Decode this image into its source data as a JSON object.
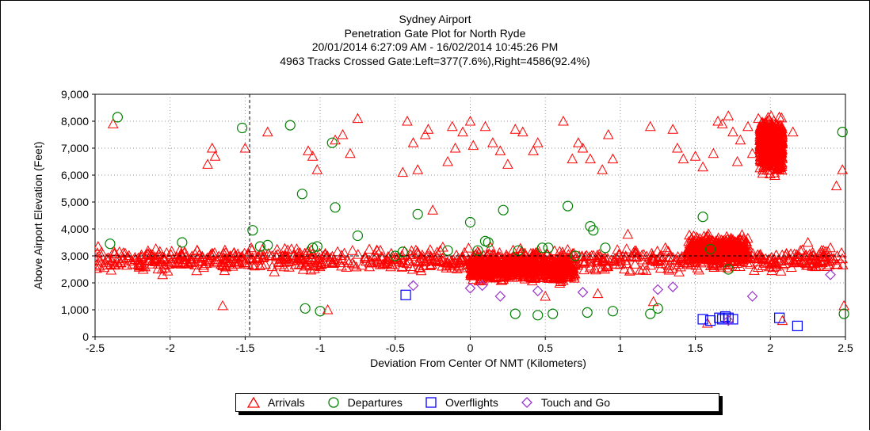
{
  "chart_data": {
    "type": "scatter",
    "title": "Sydney Airport",
    "subtitle_lines": [
      "Penetration Gate Plot for North Ryde",
      "20/01/2014 6:27:09 AM - 16/02/2014 10:45:26 PM",
      "4963 Tracks Crossed Gate:Left=377(7.6%),Right=4586(92.4%)"
    ],
    "xlabel": "Deviation From Center Of NMT (Kilometers)",
    "ylabel": "Above Airport Elevation (Feet)",
    "xlim": [
      -2.5,
      2.5
    ],
    "ylim": [
      0,
      9000
    ],
    "x_ticks": [
      -2.5,
      -2,
      -1.5,
      -1,
      -0.5,
      0,
      0.5,
      1,
      1.5,
      2,
      2.5
    ],
    "x_tick_labels": [
      "-2.5",
      "-2",
      "-1.5",
      "-1",
      "-0.5",
      "0",
      "0.5",
      "1",
      "1.5",
      "2",
      "2.5"
    ],
    "y_ticks": [
      0,
      1000,
      2000,
      3000,
      4000,
      5000,
      6000,
      7000,
      8000,
      9000
    ],
    "y_tick_labels": [
      "0",
      "1,000",
      "2,000",
      "3,000",
      "4,000",
      "5,000",
      "6,000",
      "7,000",
      "8,000",
      "9,000"
    ],
    "grid": true,
    "reference_lines": {
      "x": -1.47,
      "y": 3000
    },
    "legend_position": "bottom",
    "series": [
      {
        "name": "Arrivals",
        "marker": "triangle",
        "color": "#ff0000",
        "points": [
          [
            -2.48,
            3350
          ],
          [
            -2.38,
            7900
          ],
          [
            -2.35,
            2900
          ],
          [
            -2.3,
            3100
          ],
          [
            -2.25,
            2700
          ],
          [
            -2.18,
            2500
          ],
          [
            -2.12,
            2800
          ],
          [
            -2.05,
            2300
          ],
          [
            -1.98,
            2900
          ],
          [
            -1.88,
            2700
          ],
          [
            -1.82,
            3200
          ],
          [
            -1.75,
            6400
          ],
          [
            -1.72,
            7000
          ],
          [
            -1.7,
            6700
          ],
          [
            -1.65,
            1150
          ],
          [
            -1.6,
            3000
          ],
          [
            -1.55,
            2700
          ],
          [
            -1.5,
            7000
          ],
          [
            -1.46,
            3300
          ],
          [
            -1.42,
            2900
          ],
          [
            -1.35,
            7600
          ],
          [
            -1.32,
            2600
          ],
          [
            -1.25,
            3000
          ],
          [
            -1.2,
            2800
          ],
          [
            -1.15,
            3100
          ],
          [
            -1.08,
            6900
          ],
          [
            -1.05,
            6700
          ],
          [
            -1.02,
            6200
          ],
          [
            -0.98,
            3000
          ],
          [
            -0.95,
            1000
          ],
          [
            -0.9,
            7300
          ],
          [
            -0.85,
            7500
          ],
          [
            -0.8,
            6800
          ],
          [
            -0.75,
            8100
          ],
          [
            -0.7,
            2900
          ],
          [
            -0.62,
            3200
          ],
          [
            -0.55,
            2800
          ],
          [
            -0.45,
            6100
          ],
          [
            -0.42,
            8000
          ],
          [
            -0.38,
            7200
          ],
          [
            -0.35,
            6200
          ],
          [
            -0.3,
            7500
          ],
          [
            -0.28,
            7700
          ],
          [
            -0.25,
            4700
          ],
          [
            -0.2,
            3200
          ],
          [
            -0.15,
            6500
          ],
          [
            -0.12,
            7800
          ],
          [
            -0.1,
            7000
          ],
          [
            -0.05,
            7600
          ],
          [
            0.0,
            8000
          ],
          [
            0.02,
            7100
          ],
          [
            0.05,
            3000
          ],
          [
            0.1,
            7800
          ],
          [
            0.15,
            7200
          ],
          [
            0.2,
            6900
          ],
          [
            0.25,
            6400
          ],
          [
            0.3,
            7700
          ],
          [
            0.35,
            7600
          ],
          [
            0.42,
            6900
          ],
          [
            0.45,
            7200
          ],
          [
            0.5,
            1500
          ],
          [
            0.55,
            2600
          ],
          [
            0.62,
            8000
          ],
          [
            0.68,
            6600
          ],
          [
            0.72,
            7200
          ],
          [
            0.75,
            7000
          ],
          [
            0.8,
            6600
          ],
          [
            0.85,
            1600
          ],
          [
            0.88,
            6200
          ],
          [
            0.92,
            7500
          ],
          [
            0.95,
            6600
          ],
          [
            1.0,
            2800
          ],
          [
            1.05,
            3800
          ],
          [
            1.1,
            3100
          ],
          [
            1.15,
            2500
          ],
          [
            1.2,
            7800
          ],
          [
            1.22,
            1300
          ],
          [
            1.25,
            2800
          ],
          [
            1.3,
            3300
          ],
          [
            1.35,
            7700
          ],
          [
            1.38,
            7000
          ],
          [
            1.42,
            6600
          ],
          [
            1.45,
            3100
          ],
          [
            1.5,
            6700
          ],
          [
            1.55,
            6300
          ],
          [
            1.58,
            500
          ],
          [
            1.62,
            6800
          ],
          [
            1.65,
            8000
          ],
          [
            1.68,
            7900
          ],
          [
            1.72,
            8200
          ],
          [
            1.75,
            7600
          ],
          [
            1.78,
            6500
          ],
          [
            1.8,
            7300
          ],
          [
            1.85,
            7800
          ],
          [
            1.88,
            6800
          ],
          [
            1.92,
            8100
          ],
          [
            1.95,
            6200
          ],
          [
            2.0,
            7000
          ],
          [
            2.03,
            6500
          ],
          [
            2.05,
            7800
          ],
          [
            2.08,
            600
          ],
          [
            2.1,
            3000
          ],
          [
            2.15,
            7600
          ],
          [
            2.2,
            3200
          ],
          [
            2.25,
            3500
          ],
          [
            2.3,
            2600
          ],
          [
            2.35,
            3000
          ],
          [
            2.4,
            3300
          ],
          [
            2.44,
            5600
          ],
          [
            2.48,
            6200
          ],
          [
            2.49,
            1150
          ]
        ],
        "dense_clusters": [
          {
            "x_range": [
              -2.5,
              2.5
            ],
            "y_range": [
              2300,
              3400
            ],
            "count": 900
          },
          {
            "x_range": [
              0.0,
              0.7
            ],
            "y_range": [
              1900,
              3200
            ],
            "count": 700
          },
          {
            "x_range": [
              1.45,
              1.85
            ],
            "y_range": [
              2600,
              3900
            ],
            "count": 450
          },
          {
            "x_range": [
              1.93,
              2.08
            ],
            "y_range": [
              5800,
              8400
            ],
            "count": 600
          }
        ]
      },
      {
        "name": "Departures",
        "marker": "circle",
        "color": "#008000",
        "points": [
          [
            -2.4,
            3450
          ],
          [
            -2.35,
            8150
          ],
          [
            -1.92,
            3500
          ],
          [
            -1.52,
            7750
          ],
          [
            -1.45,
            3950
          ],
          [
            -1.4,
            3350
          ],
          [
            -1.35,
            3400
          ],
          [
            -1.2,
            7850
          ],
          [
            -1.12,
            5300
          ],
          [
            -1.1,
            1050
          ],
          [
            -1.05,
            3300
          ],
          [
            -1.02,
            3350
          ],
          [
            -1.0,
            950
          ],
          [
            -0.92,
            7200
          ],
          [
            -0.9,
            4800
          ],
          [
            -0.75,
            3750
          ],
          [
            -0.5,
            3000
          ],
          [
            -0.45,
            3150
          ],
          [
            -0.35,
            4550
          ],
          [
            -0.15,
            3200
          ],
          [
            0.0,
            4250
          ],
          [
            0.05,
            3200
          ],
          [
            0.1,
            3550
          ],
          [
            0.12,
            3500
          ],
          [
            0.22,
            4700
          ],
          [
            0.3,
            850
          ],
          [
            0.32,
            3200
          ],
          [
            0.45,
            800
          ],
          [
            0.48,
            3300
          ],
          [
            0.52,
            3300
          ],
          [
            0.55,
            850
          ],
          [
            0.65,
            4850
          ],
          [
            0.7,
            3000
          ],
          [
            0.78,
            900
          ],
          [
            0.8,
            4100
          ],
          [
            0.82,
            3950
          ],
          [
            0.9,
            3300
          ],
          [
            0.95,
            950
          ],
          [
            1.2,
            850
          ],
          [
            1.25,
            1050
          ],
          [
            1.55,
            4450
          ],
          [
            1.6,
            3250
          ],
          [
            1.72,
            2500
          ],
          [
            2.48,
            7600
          ],
          [
            2.49,
            850
          ]
        ]
      },
      {
        "name": "Overflights",
        "marker": "square",
        "color": "#0000ff",
        "points": [
          [
            -0.43,
            1550
          ],
          [
            1.55,
            650
          ],
          [
            1.6,
            600
          ],
          [
            1.66,
            700
          ],
          [
            1.68,
            650
          ],
          [
            1.7,
            750
          ],
          [
            1.72,
            700
          ],
          [
            1.75,
            650
          ],
          [
            2.06,
            700
          ],
          [
            2.18,
            400
          ]
        ]
      },
      {
        "name": "Touch and Go",
        "marker": "diamond",
        "color": "#9933cc",
        "points": [
          [
            -0.38,
            1900
          ],
          [
            0.0,
            1800
          ],
          [
            0.08,
            1900
          ],
          [
            0.2,
            1500
          ],
          [
            0.45,
            1700
          ],
          [
            0.75,
            1650
          ],
          [
            1.25,
            1750
          ],
          [
            1.35,
            1850
          ],
          [
            1.72,
            600
          ],
          [
            1.88,
            1500
          ],
          [
            2.4,
            2300
          ]
        ]
      }
    ]
  }
}
